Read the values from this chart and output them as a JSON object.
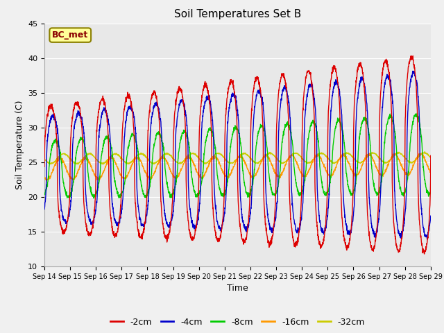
{
  "title": "Soil Temperatures Set B",
  "xlabel": "Time",
  "ylabel": "Soil Temperature (C)",
  "ylim": [
    10,
    45
  ],
  "background_color": "#f0f0f0",
  "plot_bg_color": "#e8e8e8",
  "annotation_text": "BC_met",
  "annotation_box_facecolor": "#ffff99",
  "annotation_box_edgecolor": "#8B8000",
  "annotation_text_color": "#8B0000",
  "series_colors": {
    "-2cm": "#dd0000",
    "-4cm": "#0000cc",
    "-8cm": "#00cc00",
    "-16cm": "#ff9900",
    "-32cm": "#cccc00"
  },
  "linewidth": 1.0,
  "xtick_labels": [
    "Sep 14",
    "Sep 15",
    "Sep 16",
    "Sep 17",
    "Sep 18",
    "Sep 19",
    "Sep 20",
    "Sep 21",
    "Sep 22",
    "Sep 23",
    "Sep 24",
    "Sep 25",
    "Sep 26",
    "Sep 27",
    "Sep 28",
    "Sep 29"
  ],
  "ytick_values": [
    10,
    15,
    20,
    25,
    30,
    35,
    40,
    45
  ],
  "grid_color": "white",
  "figsize": [
    6.4,
    4.8
  ],
  "dpi": 100
}
